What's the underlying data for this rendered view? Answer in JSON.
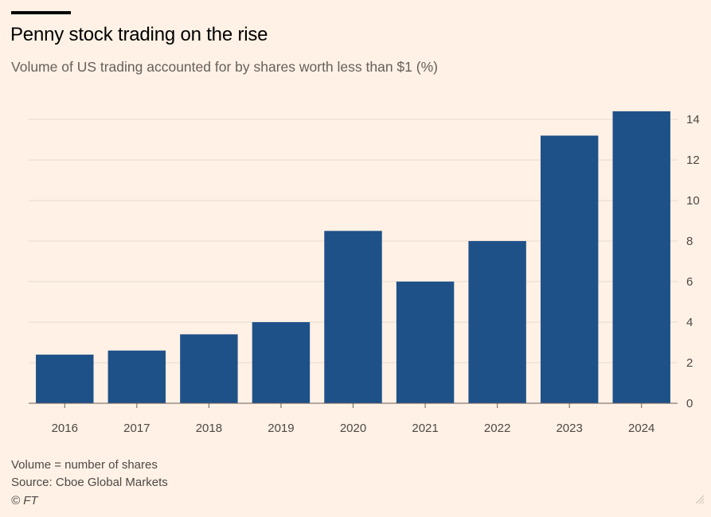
{
  "header": {
    "title": "Penny stock trading on the rise",
    "subtitle": "Volume of US trading accounted for by shares worth less than $1 (%)"
  },
  "chart_data": {
    "type": "bar",
    "title": "Penny stock trading on the rise",
    "subtitle": "Volume of US trading accounted for by shares worth less than $1 (%)",
    "categories": [
      "2016",
      "2017",
      "2018",
      "2019",
      "2020",
      "2021",
      "2022",
      "2023",
      "2024"
    ],
    "values": [
      2.4,
      2.6,
      3.4,
      4.0,
      8.5,
      6.0,
      8.0,
      13.2,
      14.4
    ],
    "xlabel": "",
    "ylabel": "%",
    "ylim": [
      0,
      14
    ],
    "yticks": [
      0,
      2,
      4,
      6,
      8,
      10,
      12,
      14
    ],
    "y_axis_position": "right",
    "grid": true,
    "bar_color": "#1f5189",
    "legend": "none"
  },
  "footer": {
    "note": "Volume = number of shares",
    "source": "Source: Cboe Global Markets",
    "credit": "© FT"
  }
}
